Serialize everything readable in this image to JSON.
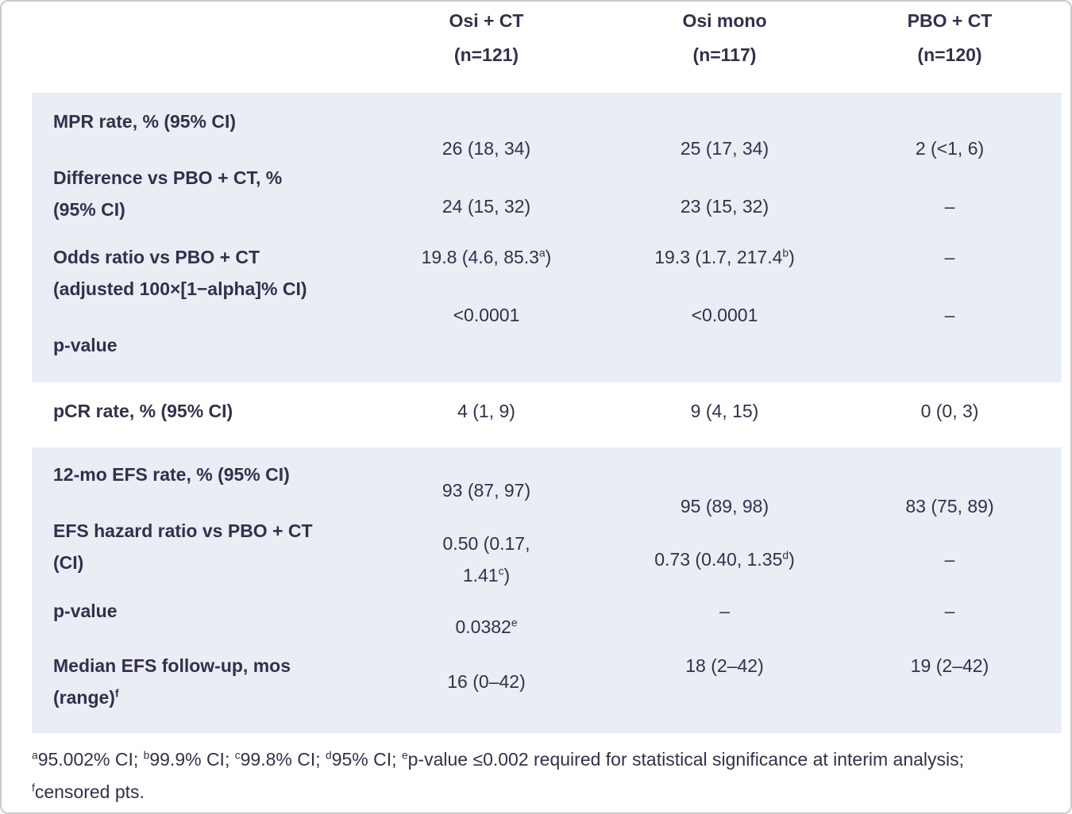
{
  "palette": {
    "background": "#ffffff",
    "section_background": "#e9edf4",
    "text": "#352f4b",
    "frame_border": "#cbccd1"
  },
  "columns": [
    {
      "name": "Osi + CT",
      "n": "(n=121)"
    },
    {
      "name": "Osi mono",
      "n": "(n=117)"
    },
    {
      "name": "PBO + CT",
      "n": "(n=120)"
    }
  ],
  "section1": {
    "rows": [
      {
        "label": "MPR rate, % (95% CI)",
        "values": [
          "26 (18, 34)",
          "25 (17, 34)",
          "2 (<1, 6)"
        ]
      },
      {
        "label": "Difference vs PBO + CT, %\n(95% CI)",
        "values": [
          "24 (15, 32)",
          "23 (15, 32)",
          "–"
        ]
      },
      {
        "label": "Odds ratio vs PBO + CT\n(adjusted 100×[1−alpha]% CI)",
        "values": [
          "19.8 (4.6, 85.3^a)",
          "19.3 (1.7, 217.4^b)",
          "–"
        ]
      },
      {
        "label": "p-value",
        "values": [
          "<0.0001",
          "<0.0001",
          "–"
        ]
      }
    ]
  },
  "pcr_row": {
    "label": "pCR rate, % (95% CI)",
    "values": [
      "4 (1, 9)",
      "9 (4, 15)",
      "0 (0, 3)"
    ]
  },
  "section2": {
    "rows": [
      {
        "label": "12-mo EFS rate, % (95% CI)",
        "values": [
          "93 (87, 97)",
          "95 (89, 98)",
          "83 (75, 89)"
        ]
      },
      {
        "label": "EFS hazard ratio vs PBO + CT\n(CI)",
        "values": [
          "0.50 (0.17,\n1.41^c)",
          "0.73 (0.40, 1.35^d)",
          "–"
        ]
      },
      {
        "label": "p-value",
        "values": [
          "0.0382^e",
          "–",
          "–"
        ]
      },
      {
        "label": "Median EFS follow-up, mos\n(range)^f",
        "values": [
          "16 (0–42)",
          "18 (2–42)",
          "19 (2–42)"
        ]
      }
    ]
  },
  "footnote": "^a95.002% CI; ^b99.9% CI; ^c99.8% CI; ^d95% CI; ^ep-value ≤0.002 required for statistical significance at interim analysis; ^fcensored pts."
}
